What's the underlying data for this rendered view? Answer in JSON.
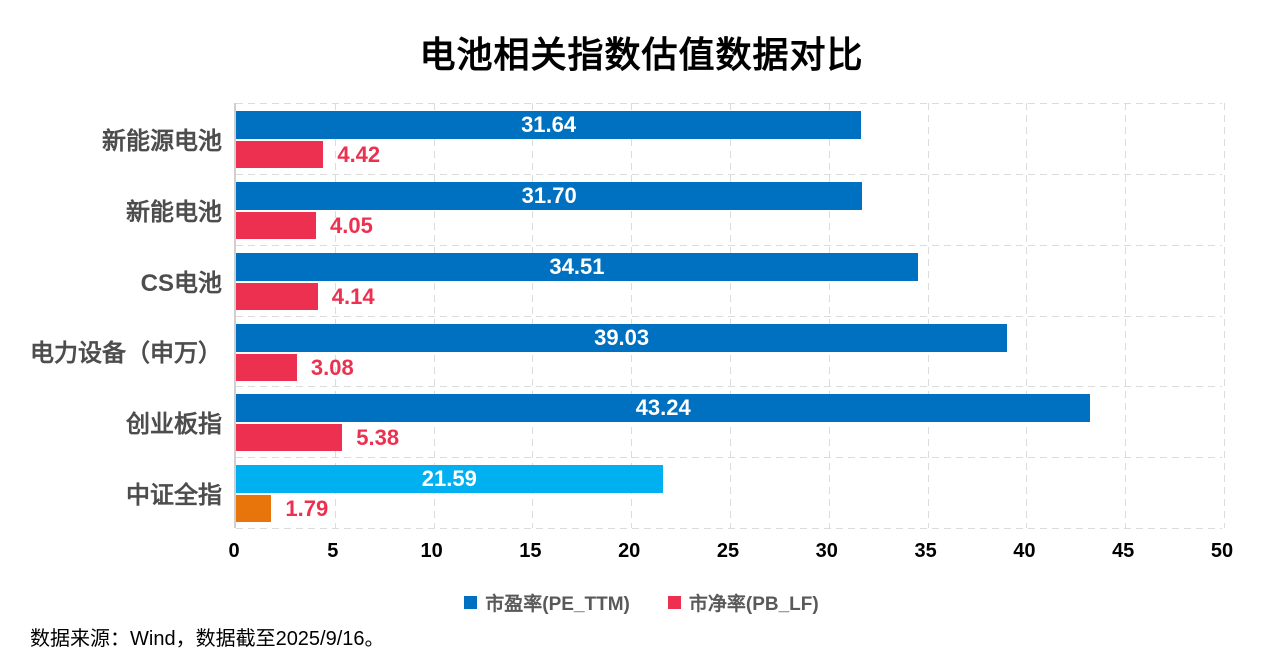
{
  "title": "电池相关指数估值数据对比",
  "source_note": "数据来源：Wind，数据截至2025/9/16。",
  "colors": {
    "pe_bar": "#0070C0",
    "pb_bar": "#ED3050",
    "pe_bar_benchmark": "#00B0F0",
    "pb_bar_benchmark": "#E8740C",
    "pb_label": "#ED3050",
    "grid": "#DCDCDC",
    "axis_line": "#D0CECE",
    "category_label": "#4D4D4D",
    "legend_text": "#595959"
  },
  "chart_data": {
    "type": "bar",
    "orientation": "horizontal",
    "title": "电池相关指数估值数据对比",
    "categories": [
      "新能源电池",
      "新能电池",
      "CS电池",
      "电力设备（申万）",
      "创业板指",
      "中证全指"
    ],
    "series": [
      {
        "name": "市盈率(PE_TTM)",
        "legend_color": "#0070C0",
        "values": [
          31.64,
          31.7,
          34.51,
          39.03,
          43.24,
          21.59
        ],
        "labels": [
          "31.64",
          "31.70",
          "34.51",
          "39.03",
          "43.24",
          "21.59"
        ],
        "bar_colors": [
          "#0070C0",
          "#0070C0",
          "#0070C0",
          "#0070C0",
          "#0070C0",
          "#00B0F0"
        ],
        "label_placement": "inside",
        "label_color": "#FFFFFF"
      },
      {
        "name": "市净率(PB_LF)",
        "legend_color": "#ED3050",
        "values": [
          4.42,
          4.05,
          4.14,
          3.08,
          5.38,
          1.79
        ],
        "labels": [
          "4.42",
          "4.05",
          "4.14",
          "3.08",
          "5.38",
          "1.79"
        ],
        "bar_colors": [
          "#ED3050",
          "#ED3050",
          "#ED3050",
          "#ED3050",
          "#ED3050",
          "#E8740C"
        ],
        "label_placement": "outside",
        "label_color": "#ED3050"
      }
    ],
    "xlim": [
      0,
      50
    ],
    "x_ticks": [
      0,
      5,
      10,
      15,
      20,
      25,
      30,
      35,
      40,
      45,
      50
    ],
    "x_tick_labels": [
      "0",
      "5",
      "10",
      "15",
      "20",
      "25",
      "30",
      "35",
      "40",
      "45",
      "50"
    ],
    "grid": true,
    "legend_position": "bottom"
  }
}
